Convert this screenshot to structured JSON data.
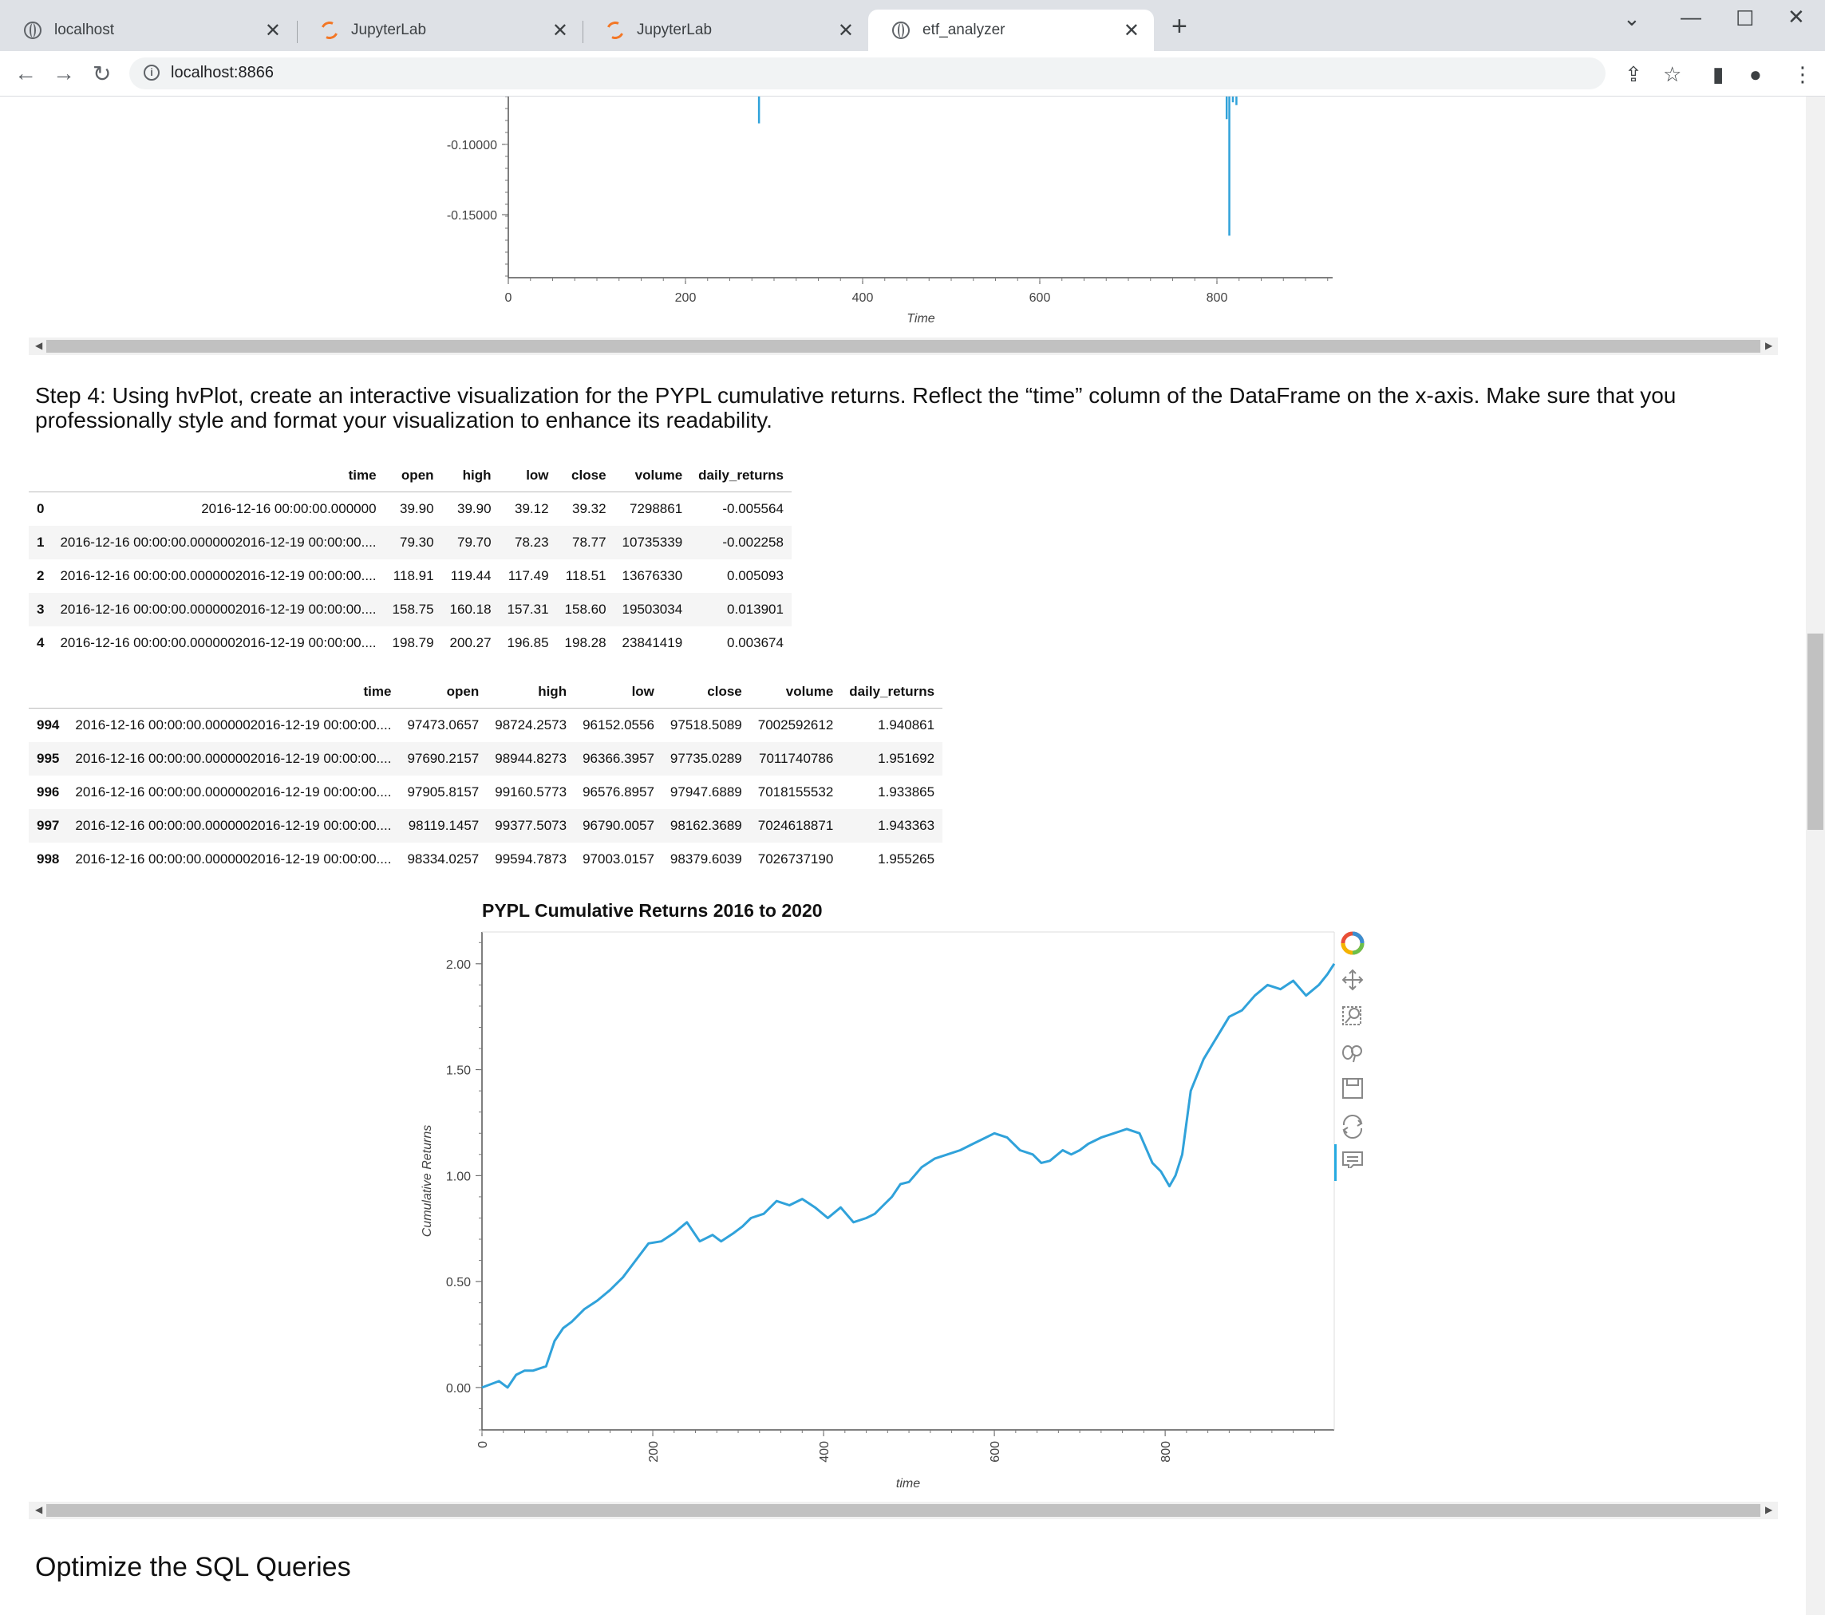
{
  "browser": {
    "tabs": [
      {
        "title": "localhost",
        "icon": "globe-icon"
      },
      {
        "title": "JupyterLab",
        "icon": "jupyter-icon"
      },
      {
        "title": "JupyterLab",
        "icon": "jupyter-icon"
      },
      {
        "title": "etf_analyzer",
        "icon": "globe-icon",
        "active": true
      }
    ],
    "url": "localhost:8866",
    "new_tab": "+"
  },
  "top_chart": {
    "xlabel": "Time",
    "yticks": [
      "-0.10000",
      "-0.15000"
    ],
    "xticks": [
      "0",
      "200",
      "400",
      "600",
      "800"
    ],
    "color": "#30a2da"
  },
  "step4_heading": "Step 4: Using hvPlot, create an interactive visualization for the PYPL cumulative returns. Reflect the “time” column of the DataFrame on the x-axis. Make sure that you professionally style and format your visualization to enhance its readability.",
  "head_table": {
    "columns": [
      "",
      "time",
      "open",
      "high",
      "low",
      "close",
      "volume",
      "daily_returns"
    ],
    "rows": [
      [
        "0",
        "2016-12-16 00:00:00.000000",
        "39.90",
        "39.90",
        "39.12",
        "39.32",
        "7298861",
        "-0.005564"
      ],
      [
        "1",
        "2016-12-16 00:00:00.0000002016-12-19 00:00:00....",
        "79.30",
        "79.70",
        "78.23",
        "78.77",
        "10735339",
        "-0.002258"
      ],
      [
        "2",
        "2016-12-16 00:00:00.0000002016-12-19 00:00:00....",
        "118.91",
        "119.44",
        "117.49",
        "118.51",
        "13676330",
        "0.005093"
      ],
      [
        "3",
        "2016-12-16 00:00:00.0000002016-12-19 00:00:00....",
        "158.75",
        "160.18",
        "157.31",
        "158.60",
        "19503034",
        "0.013901"
      ],
      [
        "4",
        "2016-12-16 00:00:00.0000002016-12-19 00:00:00....",
        "198.79",
        "200.27",
        "196.85",
        "198.28",
        "23841419",
        "0.003674"
      ]
    ]
  },
  "tail_table": {
    "columns": [
      "",
      "time",
      "open",
      "high",
      "low",
      "close",
      "volume",
      "daily_returns"
    ],
    "rows": [
      [
        "994",
        "2016-12-16 00:00:00.0000002016-12-19 00:00:00....",
        "97473.0657",
        "98724.2573",
        "96152.0556",
        "97518.5089",
        "7002592612",
        "1.940861"
      ],
      [
        "995",
        "2016-12-16 00:00:00.0000002016-12-19 00:00:00....",
        "97690.2157",
        "98944.8273",
        "96366.3957",
        "97735.0289",
        "7011740786",
        "1.951692"
      ],
      [
        "996",
        "2016-12-16 00:00:00.0000002016-12-19 00:00:00....",
        "97905.8157",
        "99160.5773",
        "96576.8957",
        "97947.6889",
        "7018155532",
        "1.933865"
      ],
      [
        "997",
        "2016-12-16 00:00:00.0000002016-12-19 00:00:00....",
        "98119.1457",
        "99377.5073",
        "96790.0057",
        "98162.3689",
        "7024618871",
        "1.943363"
      ],
      [
        "998",
        "2016-12-16 00:00:00.0000002016-12-19 00:00:00....",
        "98334.0257",
        "99594.7873",
        "97003.0157",
        "98379.6039",
        "7026737190",
        "1.955265"
      ]
    ]
  },
  "chart_data": {
    "type": "line",
    "title": "PYPL Cumulative Returns 2016 to 2020",
    "xlabel": "time",
    "ylabel": "Cumulative Returns",
    "xlim": [
      0,
      998
    ],
    "ylim": [
      -0.2,
      2.15
    ],
    "xticks": [
      "0",
      "200",
      "400",
      "600",
      "800"
    ],
    "yticks": [
      "0.00",
      "0.50",
      "1.00",
      "1.50",
      "2.00"
    ],
    "color": "#30a2da",
    "series": [
      {
        "x": [
          0,
          20,
          30,
          40,
          50,
          60,
          75,
          85,
          95,
          105,
          120,
          135,
          150,
          165,
          180,
          195,
          210,
          225,
          240,
          255,
          270,
          280,
          295,
          305,
          315,
          330,
          345,
          360,
          375,
          390,
          405,
          420,
          435,
          450,
          460,
          470,
          480,
          490,
          500,
          515,
          530,
          545,
          560,
          575,
          590,
          600,
          615,
          630,
          645,
          655,
          665,
          680,
          690,
          700,
          710,
          725,
          740,
          755,
          770,
          785,
          795,
          805,
          812,
          820,
          830,
          845,
          860,
          875,
          890,
          905,
          920,
          935,
          950,
          965,
          980,
          990,
          998
        ],
        "values": [
          0.0,
          0.03,
          0.0,
          0.06,
          0.08,
          0.08,
          0.1,
          0.22,
          0.28,
          0.31,
          0.37,
          0.41,
          0.46,
          0.52,
          0.6,
          0.68,
          0.69,
          0.73,
          0.78,
          0.69,
          0.72,
          0.69,
          0.73,
          0.76,
          0.8,
          0.82,
          0.88,
          0.86,
          0.89,
          0.85,
          0.8,
          0.85,
          0.78,
          0.8,
          0.82,
          0.86,
          0.9,
          0.96,
          0.97,
          1.04,
          1.08,
          1.1,
          1.12,
          1.15,
          1.18,
          1.2,
          1.18,
          1.12,
          1.1,
          1.06,
          1.07,
          1.12,
          1.1,
          1.12,
          1.15,
          1.18,
          1.2,
          1.22,
          1.2,
          1.06,
          1.02,
          0.95,
          1.0,
          1.1,
          1.4,
          1.55,
          1.65,
          1.75,
          1.78,
          1.85,
          1.9,
          1.88,
          1.92,
          1.85,
          1.9,
          1.95,
          2.0
        ]
      }
    ]
  },
  "toolbar_icons": [
    "bokeh-logo-icon",
    "pan-icon",
    "box-zoom-icon",
    "wheel-zoom-icon",
    "save-icon",
    "reset-icon",
    "hover-icon"
  ],
  "section_heading": "Optimize the SQL Queries"
}
